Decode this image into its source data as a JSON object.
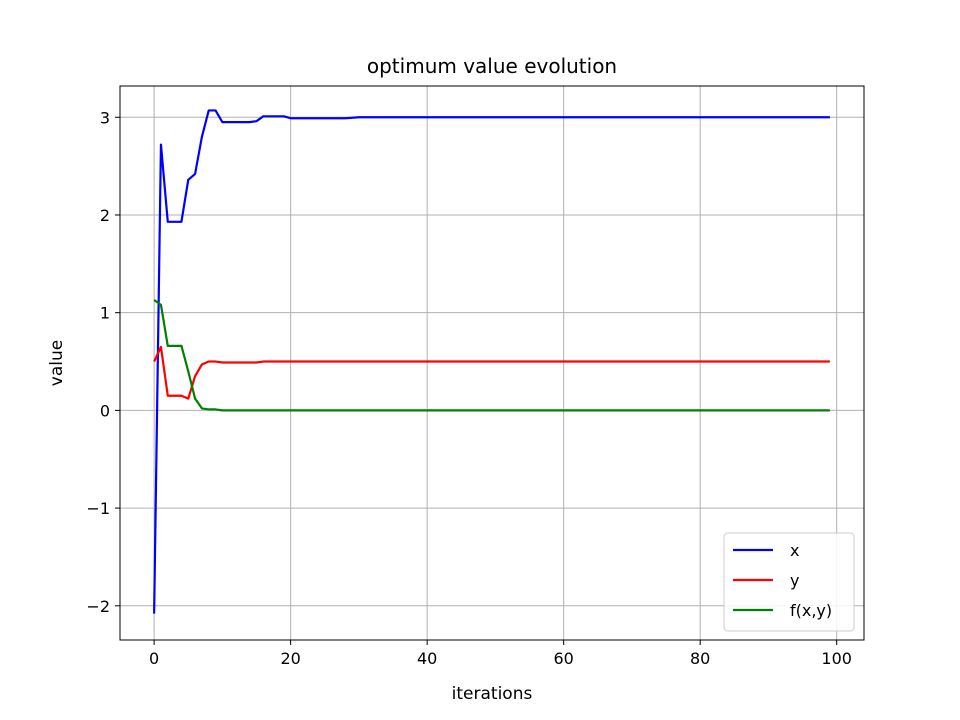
{
  "chart_data": {
    "type": "line",
    "title": "optimum value evolution",
    "xlabel": "iterations",
    "ylabel": "value",
    "xlim": [
      -5,
      104
    ],
    "ylim": [
      -2.35,
      3.32
    ],
    "xticks": [
      0,
      20,
      40,
      60,
      80,
      100
    ],
    "yticks": [
      -2,
      -1,
      0,
      1,
      2,
      3
    ],
    "ytick_labels": [
      "−2",
      "−1",
      "0",
      "1",
      "2",
      "3"
    ],
    "grid": true,
    "legend_position": "lower-right",
    "series": [
      {
        "name": "x",
        "color": "#0000ff",
        "points": [
          [
            0,
            -2.08
          ],
          [
            1,
            2.72
          ],
          [
            2,
            1.93
          ],
          [
            3,
            1.93
          ],
          [
            4,
            1.93
          ],
          [
            5,
            2.36
          ],
          [
            6,
            2.42
          ],
          [
            7,
            2.8
          ],
          [
            8,
            3.07
          ],
          [
            9,
            3.07
          ],
          [
            10,
            2.95
          ],
          [
            11,
            2.95
          ],
          [
            12,
            2.95
          ],
          [
            13,
            2.95
          ],
          [
            14,
            2.95
          ],
          [
            15,
            2.96
          ],
          [
            16,
            3.01
          ],
          [
            17,
            3.01
          ],
          [
            18,
            3.01
          ],
          [
            19,
            3.01
          ],
          [
            20,
            2.99
          ],
          [
            25,
            2.99
          ],
          [
            28,
            2.99
          ],
          [
            30,
            3.0
          ],
          [
            33,
            3.0
          ],
          [
            40,
            3.0
          ],
          [
            60,
            3.0
          ],
          [
            80,
            3.0
          ],
          [
            99,
            3.0
          ]
        ]
      },
      {
        "name": "y",
        "color": "#ff0000",
        "points": [
          [
            0,
            0.5
          ],
          [
            1,
            0.65
          ],
          [
            2,
            0.15
          ],
          [
            3,
            0.15
          ],
          [
            4,
            0.15
          ],
          [
            5,
            0.12
          ],
          [
            6,
            0.35
          ],
          [
            7,
            0.47
          ],
          [
            8,
            0.5
          ],
          [
            9,
            0.5
          ],
          [
            10,
            0.49
          ],
          [
            11,
            0.49
          ],
          [
            12,
            0.49
          ],
          [
            13,
            0.49
          ],
          [
            14,
            0.49
          ],
          [
            15,
            0.49
          ],
          [
            16,
            0.5
          ],
          [
            17,
            0.5
          ],
          [
            20,
            0.5
          ],
          [
            30,
            0.5
          ],
          [
            40,
            0.5
          ],
          [
            60,
            0.5
          ],
          [
            80,
            0.5
          ],
          [
            99,
            0.5
          ]
        ]
      },
      {
        "name": "f(x,y)",
        "color": "#008000",
        "points": [
          [
            0,
            1.13
          ],
          [
            1,
            1.08
          ],
          [
            2,
            0.66
          ],
          [
            3,
            0.66
          ],
          [
            4,
            0.66
          ],
          [
            5,
            0.4
          ],
          [
            6,
            0.12
          ],
          [
            7,
            0.02
          ],
          [
            8,
            0.01
          ],
          [
            9,
            0.01
          ],
          [
            10,
            0.0
          ],
          [
            12,
            0.0
          ],
          [
            20,
            0.0
          ],
          [
            40,
            0.0
          ],
          [
            60,
            0.0
          ],
          [
            80,
            0.0
          ],
          [
            99,
            0.0
          ]
        ]
      }
    ]
  }
}
